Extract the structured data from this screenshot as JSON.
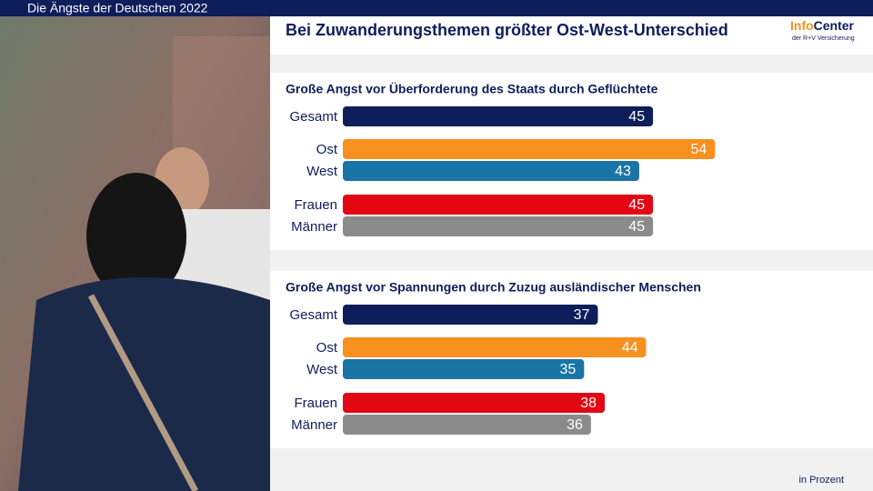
{
  "header": {
    "label": "Die Ängste der Deutschen 2022"
  },
  "title": "Bei Zuwanderungsthemen größter Ost-West-Unterschied",
  "logo": {
    "name_a": "Info",
    "name_b": "Center",
    "subtitle": "der R+V Versicherung"
  },
  "footer": "in Prozent",
  "chart_data": [
    {
      "type": "bar",
      "orientation": "horizontal",
      "title": "Große Angst vor Überforderung des Staats durch Geflüchtete",
      "categories": [
        "Gesamt",
        "Ost",
        "West",
        "Frauen",
        "Männer"
      ],
      "values": [
        45,
        54,
        43,
        45,
        45
      ],
      "colors": [
        "#0e1e5b",
        "#f7901e",
        "#1a74a6",
        "#e30613",
        "#8b8b8b"
      ]
    },
    {
      "type": "bar",
      "orientation": "horizontal",
      "title": "Große Angst vor Spannungen durch Zuzug ausländischer Menschen",
      "categories": [
        "Gesamt",
        "Ost",
        "West",
        "Frauen",
        "Männer"
      ],
      "values": [
        37,
        44,
        35,
        38,
        36
      ],
      "colors": [
        "#0e1e5b",
        "#f7901e",
        "#1a74a6",
        "#e30613",
        "#8b8b8b"
      ]
    }
  ]
}
